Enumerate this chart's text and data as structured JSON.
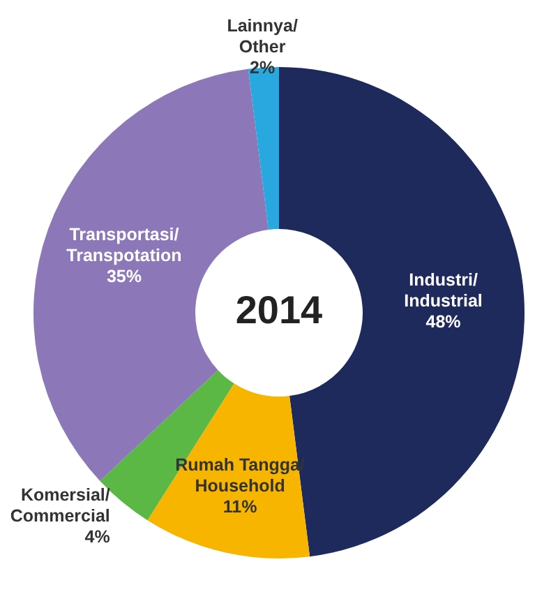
{
  "chart_data": {
    "type": "donut",
    "title": "2014",
    "categories": [
      "Industri/ Industrial",
      "Rumah Tangga/ Household",
      "Komersial/ Commercial",
      "Transportasi/ Transpotation",
      "Lainnya/ Other"
    ],
    "values": [
      48,
      11,
      4,
      35,
      2
    ],
    "value_labels": [
      "48%",
      "11%",
      "4%",
      "35%",
      "2%"
    ],
    "colors": [
      "#1f2a5c",
      "#f7b500",
      "#5cb845",
      "#8c78b8",
      "#29a8e0"
    ]
  }
}
